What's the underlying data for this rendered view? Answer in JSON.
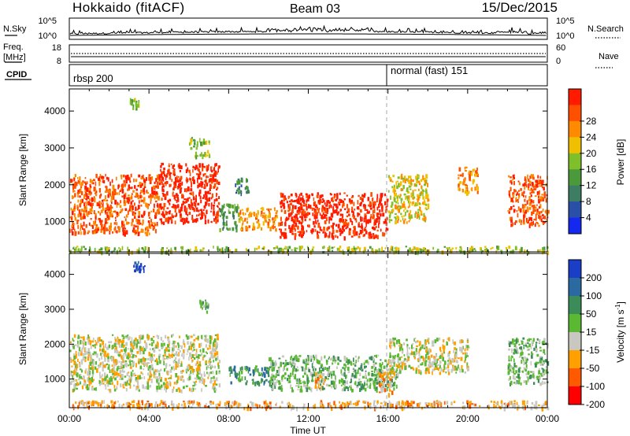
{
  "header": {
    "title": "Hokkaido (fitACF)",
    "beam": "Beam 03",
    "date": "15/Dec/2015"
  },
  "noise_panel": {
    "left_label": "N.Sky",
    "left_ticks": [
      "10^5",
      "10^0"
    ],
    "right_ticks": [
      "10^5",
      "10^0"
    ],
    "right_label": "N.Search"
  },
  "freq_panel": {
    "left_label_1": "Freq.",
    "left_label_2": "[MHz]",
    "left_ticks": [
      "18",
      "8"
    ],
    "right_ticks": [
      "60",
      "0"
    ],
    "right_label": "Nave"
  },
  "cpid_panel": {
    "label": "CPID",
    "entries": [
      {
        "text": "rbsp 200",
        "start_hour": 0
      },
      {
        "text": "normal (fast) 151",
        "start_hour": 16
      }
    ]
  },
  "time_axis": {
    "label": "Time UT",
    "ticks": [
      "00:00",
      "04:00",
      "08:00",
      "12:00",
      "16:00",
      "20:00",
      "00:00"
    ]
  },
  "chart_data": [
    {
      "type": "heatmap",
      "panel": "power",
      "xlabel": "Time UT",
      "ylabel": "Slant Range [km]",
      "x_range_hours": [
        0,
        24
      ],
      "ylim": [
        180,
        4600
      ],
      "y_ticks": [
        1000,
        2000,
        3000,
        4000
      ],
      "colorbar_label": "Power [dB]",
      "colorbar_ticks": [
        "4",
        "8",
        "12",
        "16",
        "20",
        "24",
        "28"
      ],
      "colorbar_colors": [
        "#1428f0",
        "#2a4fa8",
        "#3d7d63",
        "#4a9a3c",
        "#7fbf2a",
        "#f0c000",
        "#ff8a00",
        "#ff5000",
        "#ff1a00"
      ],
      "regions": [
        {
          "t": [
            0.0,
            4.5
          ],
          "r": [
            700,
            2300
          ],
          "level": 7
        },
        {
          "t": [
            4.5,
            7.5
          ],
          "r": [
            1000,
            2600
          ],
          "level": 8
        },
        {
          "t": [
            7.5,
            8.5
          ],
          "r": [
            800,
            1500
          ],
          "level": 3
        },
        {
          "t": [
            8.5,
            10.5
          ],
          "r": [
            800,
            1400
          ],
          "level": 6
        },
        {
          "t": [
            10.5,
            16.0
          ],
          "r": [
            600,
            1800
          ],
          "level": 8
        },
        {
          "t": [
            16.0,
            18.0
          ],
          "r": [
            1000,
            2300
          ],
          "level": 5
        },
        {
          "t": [
            19.5,
            20.5
          ],
          "r": [
            1800,
            2500
          ],
          "level": 6
        },
        {
          "t": [
            22.0,
            24.0
          ],
          "r": [
            900,
            2300
          ],
          "level": 7
        },
        {
          "t": [
            6.0,
            7.0
          ],
          "r": [
            2800,
            3300
          ],
          "level": 4
        },
        {
          "t": [
            3.0,
            3.5
          ],
          "r": [
            4100,
            4400
          ],
          "level": 4
        },
        {
          "t": [
            8.3,
            9.0
          ],
          "r": [
            1800,
            2200
          ],
          "level": 2
        },
        {
          "t": [
            0.0,
            24.0
          ],
          "r": [
            200,
            350
          ],
          "level": 4
        }
      ]
    },
    {
      "type": "heatmap",
      "panel": "velocity",
      "xlabel": "Time UT",
      "ylabel": "Slant Range [km]",
      "x_range_hours": [
        0,
        24
      ],
      "ylim": [
        180,
        4600
      ],
      "y_ticks": [
        1000,
        2000,
        3000,
        4000
      ],
      "colorbar_label": "Velocity [m s^-1]",
      "colorbar_ticks": [
        "200",
        "100",
        "50",
        "15",
        "-15",
        "-50",
        "-100",
        "-200"
      ],
      "colorbar_colors": [
        "#1a3ec8",
        "#2a6aa0",
        "#3c8c5a",
        "#5ab832",
        "#c8c8c0",
        "#ffa000",
        "#ff5a00",
        "#ff0000"
      ],
      "regions": [
        {
          "t": [
            0.0,
            7.5
          ],
          "r": [
            700,
            2300
          ],
          "level": 4
        },
        {
          "t": [
            8.0,
            10.0
          ],
          "r": [
            900,
            1400
          ],
          "level": 2
        },
        {
          "t": [
            10.0,
            16.5
          ],
          "r": [
            700,
            1700
          ],
          "level": 3
        },
        {
          "t": [
            12.3,
            12.8
          ],
          "r": [
            800,
            1200
          ],
          "level": 5
        },
        {
          "t": [
            15.5,
            16.2
          ],
          "r": [
            600,
            1300
          ],
          "level": 5
        },
        {
          "t": [
            16.0,
            20.0
          ],
          "r": [
            1200,
            2200
          ],
          "level": 4
        },
        {
          "t": [
            22.0,
            24.0
          ],
          "r": [
            900,
            2200
          ],
          "level": 3
        },
        {
          "t": [
            3.2,
            3.8
          ],
          "r": [
            4100,
            4400
          ],
          "level": 0
        },
        {
          "t": [
            6.5,
            7.0
          ],
          "r": [
            2900,
            3300
          ],
          "level": 3
        },
        {
          "t": [
            0.0,
            24.0
          ],
          "r": [
            200,
            400
          ],
          "level": 5
        }
      ]
    }
  ]
}
